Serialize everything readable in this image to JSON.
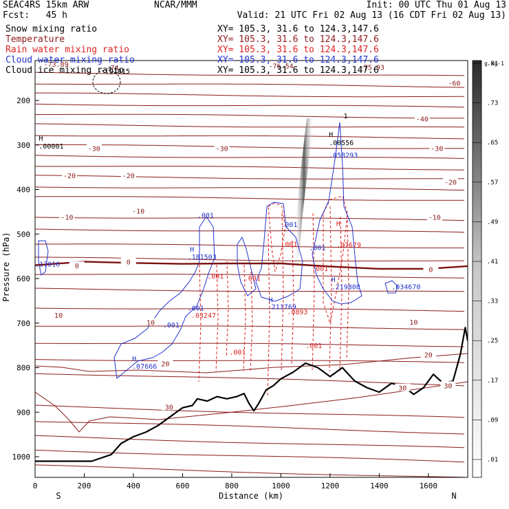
{
  "header": {
    "model": "SEAC4RS 15km ARW",
    "org": "NCAR/MMM",
    "init": "Init: 00 UTC Thu 01 Aug 13",
    "fcst": "Fcst:   45 h",
    "valid": "Valid: 21 UTC Fri 02 Aug 13 (16 CDT Fri 02 Aug 13)"
  },
  "fields": [
    {
      "name": "Snow mixing ratio",
      "xy": "XY= 105.3, 31.6 to 124.3,147.6",
      "color": "#000000"
    },
    {
      "name": "Temperature",
      "xy": "XY= 105.3, 31.6 to 124.3,147.6",
      "color": "#8b1a1a"
    },
    {
      "name": "Rain water mixing ratio",
      "xy": "XY= 105.3, 31.6 to 124.3,147.6",
      "color": "#dd2222"
    },
    {
      "name": "Cloud water mixing ratio",
      "xy": "XY= 105.3, 31.6 to 124.3,147.6",
      "color": "#2233cc"
    },
    {
      "name": "Cloud ice mixing ratio",
      "xy": "XY= 105.3, 31.6 to 124.3,147.6",
      "color": "#000000"
    }
  ],
  "chart_data": {
    "type": "contour",
    "xlabel": "Distance (km)",
    "ylabel": "Pressure (hPa)",
    "xlim": [
      0,
      1760
    ],
    "ylim": [
      1050,
      100
    ],
    "x_ticks": [
      "0",
      "200",
      "400",
      "600",
      "800",
      "1000",
      "1200",
      "1400",
      "1600"
    ],
    "y_ticks": [
      "200",
      "300",
      "400",
      "500",
      "600",
      "700",
      "800",
      "900",
      "1000"
    ],
    "x_end_labels": {
      "left": "S",
      "right": "N"
    },
    "colorbar": {
      "unit": "g kg-1",
      "ticks": [
        ".01",
        ".09",
        ".17",
        ".25",
        ".33",
        ".41",
        ".49",
        ".57",
        ".65",
        ".73",
        ".81"
      ]
    },
    "temperature_labels": [
      {
        "text": "-60",
        "x": 1705,
        "p": 161
      },
      {
        "text": "-40",
        "x": 1575,
        "p": 241
      },
      {
        "text": "-30",
        "x": 240,
        "p": 307
      },
      {
        "text": "-30",
        "x": 760,
        "p": 307
      },
      {
        "text": "-30",
        "x": 1635,
        "p": 307
      },
      {
        "text": "-20",
        "x": 140,
        "p": 368
      },
      {
        "text": "-20",
        "x": 380,
        "p": 368
      },
      {
        "text": "-20",
        "x": 1690,
        "p": 383
      },
      {
        "text": "-10",
        "x": 130,
        "p": 462
      },
      {
        "text": "-10",
        "x": 420,
        "p": 448
      },
      {
        "text": "-10",
        "x": 1625,
        "p": 462
      },
      {
        "text": "0",
        "x": 170,
        "p": 571
      },
      {
        "text": "0",
        "x": 380,
        "p": 562
      },
      {
        "text": "0",
        "x": 1610,
        "p": 579
      },
      {
        "text": "10",
        "x": 95,
        "p": 682
      },
      {
        "text": "10",
        "x": 470,
        "p": 698
      },
      {
        "text": "10",
        "x": 1540,
        "p": 697
      },
      {
        "text": "20",
        "x": 530,
        "p": 791
      },
      {
        "text": "20",
        "x": 1600,
        "p": 771
      },
      {
        "text": "30",
        "x": 545,
        "p": 888
      },
      {
        "text": "30",
        "x": 1495,
        "p": 845
      },
      {
        "text": "30",
        "x": 1680,
        "p": 840
      }
    ],
    "annotations": [
      {
        "text": "-73.89",
        "x": 35,
        "p": 124,
        "color": "#8b1a1a"
      },
      {
        "text": "-74",
        "x": 290,
        "p": 132,
        "color": "#8b1a1a"
      },
      {
        "text": "-75.93",
        "x": 1320,
        "p": 131,
        "color": "#8b1a1a"
      },
      {
        "text": "-76.54",
        "x": 950,
        "p": 128,
        "color": "#8b1a1a"
      },
      {
        "text": ".01015",
        "x": 285,
        "p": 140,
        "color": "#000000"
      },
      {
        "text": "H",
        "x": 15,
        "p": 290,
        "color": "#000000"
      },
      {
        "text": ".00001",
        "x": 15,
        "p": 308,
        "color": "#000000"
      },
      {
        "text": "H",
        "x": 1195,
        "p": 282,
        "color": "#000000"
      },
      {
        "text": ".00556",
        "x": 1195,
        "p": 300,
        "color": "#000000"
      },
      {
        "text": ".058293",
        "x": 1195,
        "p": 328,
        "color": "#2233cc"
      },
      {
        "text": "1",
        "x": 1255,
        "p": 240,
        "color": "#000000"
      },
      {
        "text": ".001",
        "x": 660,
        "p": 463,
        "color": "#2233cc"
      },
      {
        "text": "H",
        "x": 630,
        "p": 540,
        "color": "#2233cc"
      },
      {
        "text": ".181503",
        "x": 620,
        "p": 557,
        "color": "#2233cc"
      },
      {
        "text": ".17016",
        "x": 0,
        "p": 573,
        "color": "#2233cc"
      },
      {
        "text": ".001",
        "x": 1000,
        "p": 484,
        "color": "#2233cc"
      },
      {
        "text": ".001",
        "x": 1115,
        "p": 536,
        "color": "#2233cc"
      },
      {
        "text": "H",
        "x": 1225,
        "p": 482,
        "color": "#dd2222"
      },
      {
        "text": ".07679",
        "x": 1225,
        "p": 530,
        "color": "#dd2222"
      },
      {
        "text": ".001",
        "x": 1000,
        "p": 528,
        "color": "#dd2222"
      },
      {
        "text": ".001",
        "x": 1125,
        "p": 583,
        "color": "#dd2222"
      },
      {
        "text": ".001",
        "x": 700,
        "p": 600,
        "color": "#dd2222"
      },
      {
        "text": ".001",
        "x": 850,
        "p": 605,
        "color": "#dd2222"
      },
      {
        "text": "H",
        "x": 1205,
        "p": 608,
        "color": "#2233cc"
      },
      {
        "text": ".219808",
        "x": 1205,
        "p": 624,
        "color": "#2233cc"
      },
      {
        "text": ".034670",
        "x": 1450,
        "p": 624,
        "color": "#2233cc"
      },
      {
        "text": "H",
        "x": 950,
        "p": 653,
        "color": "#2233cc"
      },
      {
        "text": ".211769",
        "x": 945,
        "p": 669,
        "color": "#2233cc"
      },
      {
        "text": ".0893",
        "x": 1025,
        "p": 680,
        "color": "#dd2222"
      },
      {
        "text": ".001",
        "x": 620,
        "p": 672,
        "color": "#2233cc"
      },
      {
        "text": ".03247",
        "x": 635,
        "p": 688,
        "color": "#dd2222"
      },
      {
        "text": ".001",
        "x": 520,
        "p": 710,
        "color": "#2233cc"
      },
      {
        "text": ".001",
        "x": 790,
        "p": 771,
        "color": "#dd2222"
      },
      {
        "text": ".001",
        "x": 1100,
        "p": 756,
        "color": "#dd2222"
      },
      {
        "text": "H",
        "x": 395,
        "p": 785,
        "color": "#2233cc"
      },
      {
        "text": ".07666",
        "x": 395,
        "p": 802,
        "color": "#2233cc"
      }
    ],
    "freezing_level": [
      [
        0,
        570
      ],
      [
        200,
        562
      ],
      [
        400,
        565
      ],
      [
        600,
        567
      ],
      [
        800,
        566
      ],
      [
        1000,
        566
      ],
      [
        1200,
        573
      ],
      [
        1400,
        578
      ],
      [
        1600,
        578
      ],
      [
        1760,
        572
      ]
    ],
    "terrain": [
      [
        0,
        1010
      ],
      [
        150,
        1010
      ],
      [
        230,
        1010
      ],
      [
        310,
        995
      ],
      [
        350,
        970
      ],
      [
        400,
        955
      ],
      [
        450,
        945
      ],
      [
        500,
        930
      ],
      [
        550,
        910
      ],
      [
        600,
        890
      ],
      [
        640,
        885
      ],
      [
        660,
        870
      ],
      [
        700,
        875
      ],
      [
        740,
        865
      ],
      [
        780,
        870
      ],
      [
        820,
        865
      ],
      [
        850,
        858
      ],
      [
        870,
        880
      ],
      [
        890,
        897
      ],
      [
        910,
        880
      ],
      [
        940,
        850
      ],
      [
        970,
        840
      ],
      [
        1000,
        825
      ],
      [
        1050,
        810
      ],
      [
        1100,
        790
      ],
      [
        1150,
        800
      ],
      [
        1200,
        820
      ],
      [
        1250,
        800
      ],
      [
        1300,
        830
      ],
      [
        1350,
        845
      ],
      [
        1400,
        855
      ],
      [
        1450,
        835
      ],
      [
        1500,
        842
      ],
      [
        1540,
        860
      ],
      [
        1580,
        845
      ],
      [
        1620,
        815
      ],
      [
        1660,
        835
      ],
      [
        1700,
        830
      ],
      [
        1730,
        770
      ],
      [
        1750,
        710
      ],
      [
        1760,
        740
      ]
    ]
  }
}
